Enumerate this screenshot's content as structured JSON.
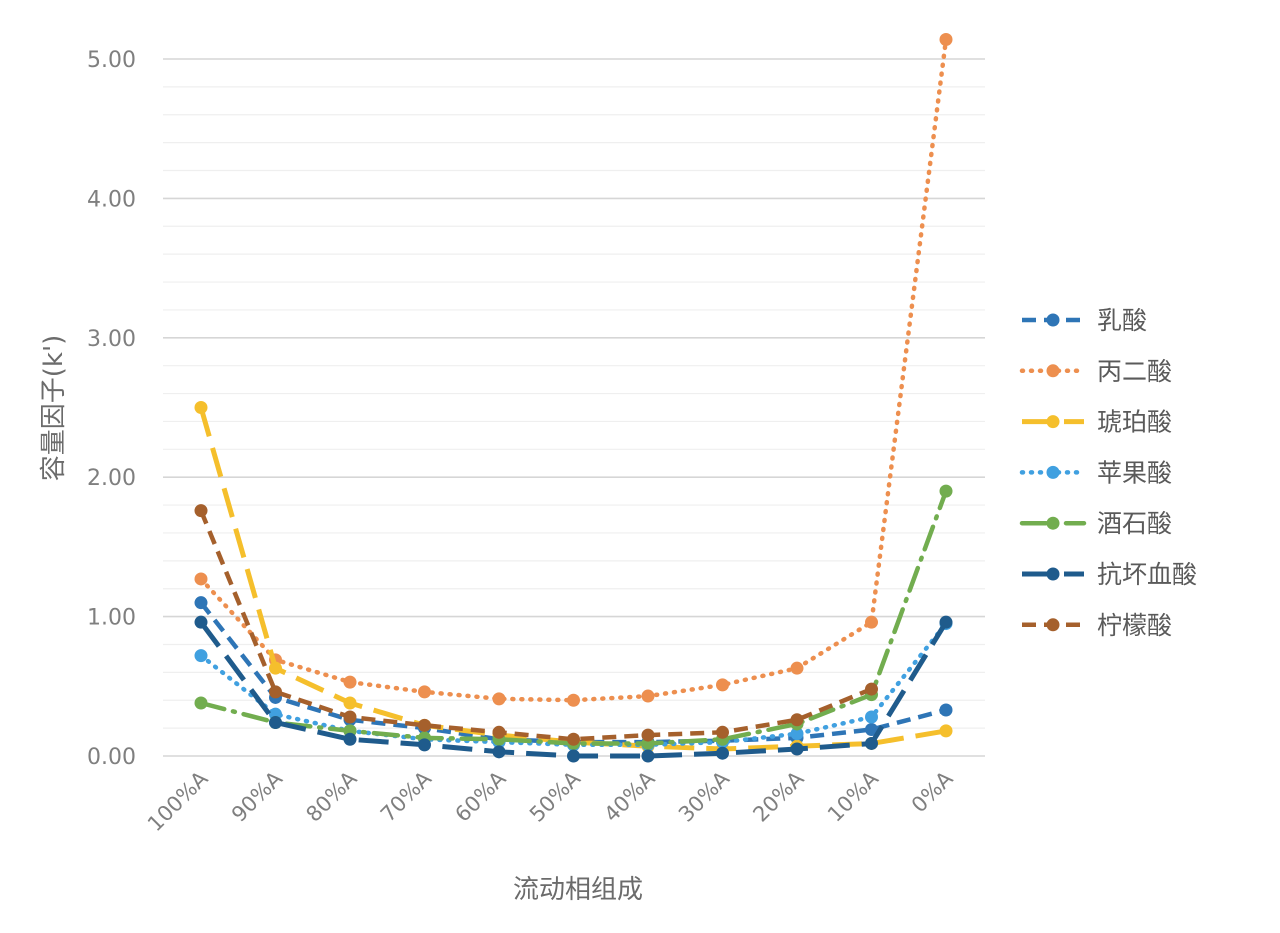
{
  "chart_data": {
    "type": "line",
    "title": "",
    "xlabel": "流动相组成",
    "ylabel": "容量因子(k')",
    "categories": [
      "100%A",
      "90%A",
      "80%A",
      "70%A",
      "60%A",
      "50%A",
      "40%A",
      "30%A",
      "20%A",
      "10%A",
      "0%A"
    ],
    "ylim": [
      0,
      5.0
    ],
    "yticks": [
      "0.00",
      "1.00",
      "2.00",
      "3.00",
      "4.00",
      "5.00"
    ],
    "ytick_values": [
      0,
      1,
      2,
      3,
      4,
      5
    ],
    "minor_grid_step": 0.2,
    "grid": true,
    "legend_position": "right",
    "series": [
      {
        "name": "乳酸",
        "color": "#2e75b6",
        "dash": "dashed",
        "values": [
          1.1,
          0.42,
          0.26,
          0.2,
          0.12,
          0.1,
          0.1,
          0.11,
          0.13,
          0.19,
          0.33
        ]
      },
      {
        "name": "丙二酸",
        "color": "#ed8f4f",
        "dash": "dotted",
        "values": [
          1.27,
          0.69,
          0.53,
          0.46,
          0.41,
          0.4,
          0.43,
          0.51,
          0.63,
          0.96,
          5.14
        ]
      },
      {
        "name": "琥珀酸",
        "color": "#f5bf2c",
        "dash": "longdash",
        "values": [
          2.5,
          0.63,
          0.38,
          0.22,
          0.15,
          0.1,
          0.07,
          0.05,
          0.07,
          0.09,
          0.18
        ]
      },
      {
        "name": "苹果酸",
        "color": "#40a0e0",
        "dash": "dotted",
        "values": [
          0.72,
          0.3,
          0.18,
          0.12,
          0.1,
          0.08,
          0.08,
          0.1,
          0.16,
          0.28,
          0.95
        ]
      },
      {
        "name": "酒石酸",
        "color": "#72ad4f",
        "dash": "dashdot",
        "values": [
          0.38,
          0.24,
          0.18,
          0.13,
          0.12,
          0.09,
          0.09,
          0.12,
          0.23,
          0.44,
          1.9
        ]
      },
      {
        "name": "抗坏血酸",
        "color": "#1f5b8c",
        "dash": "longdash",
        "values": [
          0.96,
          0.24,
          0.12,
          0.08,
          0.03,
          0.0,
          0.0,
          0.02,
          0.05,
          0.09,
          0.96
        ]
      },
      {
        "name": "柠檬酸",
        "color": "#a5602c",
        "dash": "dashed",
        "values": [
          1.76,
          0.46,
          0.28,
          0.22,
          0.17,
          0.12,
          0.15,
          0.17,
          0.26,
          0.48,
          null
        ]
      }
    ]
  }
}
